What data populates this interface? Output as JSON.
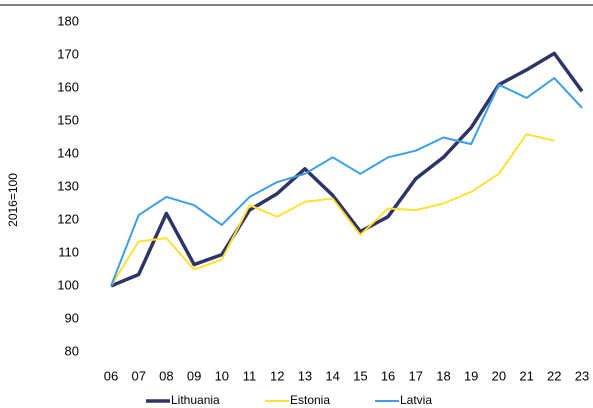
{
  "chart_data": {
    "type": "line",
    "y_label": "2016=100",
    "categories": [
      "06",
      "07",
      "08",
      "09",
      "10",
      "11",
      "12",
      "13",
      "14",
      "15",
      "16",
      "17",
      "18",
      "19",
      "20",
      "21",
      "22",
      "23"
    ],
    "series": [
      {
        "name": "Lithuania",
        "color": "#2e3465",
        "values": [
          100,
          103.5,
          122,
          106.5,
          109.5,
          123,
          128,
          135.5,
          127.5,
          116.5,
          121,
          132.5,
          139,
          148,
          161,
          165.5,
          170.5,
          159
        ]
      },
      {
        "name": "Estonia",
        "color": "#ffe033",
        "values": [
          100,
          113.5,
          114.5,
          105,
          108,
          124.5,
          121,
          125.5,
          126.5,
          115.5,
          123.5,
          123,
          125,
          128.5,
          134,
          146,
          144,
          null
        ]
      },
      {
        "name": "Latvia",
        "color": "#3b9ee6",
        "values": [
          100,
          121.5,
          127,
          124.5,
          118.5,
          127,
          131.5,
          134,
          139,
          134,
          139,
          141,
          145,
          143,
          161,
          157,
          163,
          154
        ]
      }
    ],
    "ylim": [
      80,
      180
    ],
    "yticks": [
      80,
      90,
      100,
      110,
      120,
      130,
      140,
      150,
      160,
      170,
      180
    ],
    "grid": false,
    "legend": "bottom"
  }
}
